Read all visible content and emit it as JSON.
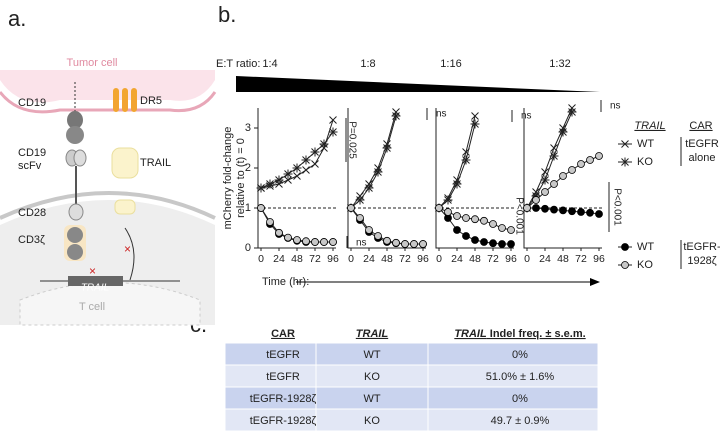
{
  "panel_labels": [
    "a.",
    "b.",
    "c."
  ],
  "diagram": {
    "tumor_cell": "Tumor cell",
    "cd19": "CD19",
    "dr5": "DR5",
    "scfv": [
      "CD19",
      "scFv"
    ],
    "trail_protein": "TRAIL",
    "cd28": "CD28",
    "cd3z": "CD3ζ",
    "trail_gene": "TRAIL",
    "t_cell": "T cell"
  },
  "et_label": "E:T ratio:",
  "y_axis_label": [
    "mCherry fold-change",
    "relative to (t) = 0"
  ],
  "x_axis_label": "Time (hr):",
  "chart_data": [
    {
      "type": "line",
      "title": "1:4",
      "x": [
        0,
        12,
        24,
        36,
        48,
        60,
        72,
        84,
        96
      ],
      "xlim": [
        -4,
        100
      ],
      "ylim": [
        0,
        3.5
      ],
      "xticks": [
        0,
        24,
        48,
        72,
        96
      ],
      "yticks": [
        0,
        1,
        2,
        3
      ],
      "hline": 1,
      "annotations": [
        "P=0.025",
        "ns"
      ],
      "series": [
        {
          "marker": "x",
          "color": "#222",
          "values": [
            1.5,
            1.55,
            1.6,
            1.7,
            1.8,
            1.95,
            2.1,
            2.5,
            3.2
          ]
        },
        {
          "marker": "star",
          "color": "#222",
          "values": [
            1.5,
            1.6,
            1.7,
            1.85,
            2.0,
            2.2,
            2.4,
            2.6,
            2.9
          ]
        },
        {
          "marker": "circle",
          "color": "#000",
          "values": [
            1,
            0.6,
            0.35,
            0.25,
            0.18,
            0.15,
            0.15,
            0.15,
            0.15
          ]
        },
        {
          "marker": "circle",
          "color": "#c8c8c8",
          "values": [
            1,
            0.65,
            0.38,
            0.26,
            0.2,
            0.17,
            0.15,
            0.15,
            0.15
          ]
        }
      ]
    },
    {
      "type": "line",
      "title": "1:8",
      "x": [
        0,
        12,
        24,
        36,
        48,
        60,
        72,
        84,
        96
      ],
      "xlim": [
        -4,
        100
      ],
      "ylim": [
        0,
        3.5
      ],
      "xticks": [
        0,
        24,
        48,
        72,
        96
      ],
      "hline": 1,
      "annotations": [
        "ns"
      ],
      "series": [
        {
          "marker": "x",
          "color": "#222",
          "values": [
            1.0,
            1.3,
            1.6,
            2.0,
            2.6,
            3.4,
            null,
            null,
            null
          ]
        },
        {
          "marker": "star",
          "color": "#222",
          "values": [
            1.0,
            1.2,
            1.5,
            1.9,
            2.5,
            3.3,
            null,
            null,
            null
          ]
        },
        {
          "marker": "circle",
          "color": "#000",
          "values": [
            1,
            0.7,
            0.4,
            0.25,
            0.15,
            0.12,
            0.1,
            0.1,
            0.1
          ]
        },
        {
          "marker": "circle",
          "color": "#c8c8c8",
          "values": [
            1,
            0.75,
            0.45,
            0.3,
            0.18,
            0.13,
            0.1,
            0.1,
            0.1
          ]
        }
      ]
    },
    {
      "type": "line",
      "title": "1:16",
      "x": [
        0,
        12,
        24,
        36,
        48,
        60,
        72,
        84,
        96
      ],
      "xlim": [
        -4,
        100
      ],
      "ylim": [
        0,
        3.5
      ],
      "xticks": [
        0,
        24,
        48,
        72,
        96
      ],
      "hline": 1,
      "annotations": [
        "ns",
        "P<0.001"
      ],
      "series": [
        {
          "marker": "x",
          "color": "#222",
          "values": [
            1,
            1.25,
            1.7,
            2.4,
            3.3,
            null,
            null,
            null,
            null
          ]
        },
        {
          "marker": "star",
          "color": "#222",
          "values": [
            1,
            1.2,
            1.6,
            2.2,
            3.1,
            null,
            null,
            null,
            null
          ]
        },
        {
          "marker": "circle",
          "color": "#000",
          "values": [
            1,
            0.75,
            0.45,
            0.3,
            0.2,
            0.15,
            0.12,
            0.1,
            0.1
          ]
        },
        {
          "marker": "circle",
          "color": "#c8c8c8",
          "values": [
            1,
            0.9,
            0.8,
            0.75,
            0.72,
            0.68,
            0.6,
            0.5,
            0.45
          ]
        }
      ]
    },
    {
      "type": "line",
      "title": "1:32",
      "x": [
        0,
        12,
        24,
        36,
        48,
        60,
        72,
        84,
        96
      ],
      "xlim": [
        -4,
        100
      ],
      "ylim": [
        0,
        3.5
      ],
      "xticks": [
        0,
        24,
        48,
        72,
        96
      ],
      "hline": 1,
      "annotations": [
        "ns"
      ],
      "series": [
        {
          "marker": "x",
          "color": "#222",
          "values": [
            1,
            1.4,
            1.9,
            2.5,
            3.0,
            3.5,
            null,
            null,
            null
          ]
        },
        {
          "marker": "star",
          "color": "#222",
          "values": [
            1,
            1.3,
            1.7,
            2.3,
            2.9,
            3.4,
            null,
            null,
            null
          ]
        },
        {
          "marker": "circle",
          "color": "#000",
          "values": [
            1,
            1.0,
            0.98,
            0.96,
            0.94,
            0.92,
            0.9,
            0.88,
            0.85
          ]
        },
        {
          "marker": "circle",
          "color": "#c8c8c8",
          "values": [
            1,
            1.2,
            1.4,
            1.6,
            1.8,
            1.95,
            2.1,
            2.2,
            2.3
          ]
        }
      ]
    }
  ],
  "legend": {
    "trail_header": "TRAIL",
    "car_header": "CAR",
    "entries": [
      "WT",
      "KO",
      "WT",
      "KO"
    ],
    "groups": [
      [
        "tEGFR",
        "alone"
      ],
      [
        "tEGFR-",
        "1928ζ"
      ]
    ],
    "annotation": "P<0.001"
  },
  "table": {
    "header": [
      "CAR",
      "TRAIL",
      [
        "TRAIL",
        " Indel freq. ± s.e.m."
      ]
    ],
    "rows": [
      [
        "tEGFR",
        "WT",
        "0%"
      ],
      [
        "tEGFR",
        "KO",
        "51.0% ± 1.6%"
      ],
      [
        "tEGFR-1928ζ",
        "WT",
        "0%"
      ],
      [
        "tEGFR-1928ζ",
        "KO",
        "49.7 ± 0.9%"
      ]
    ]
  }
}
